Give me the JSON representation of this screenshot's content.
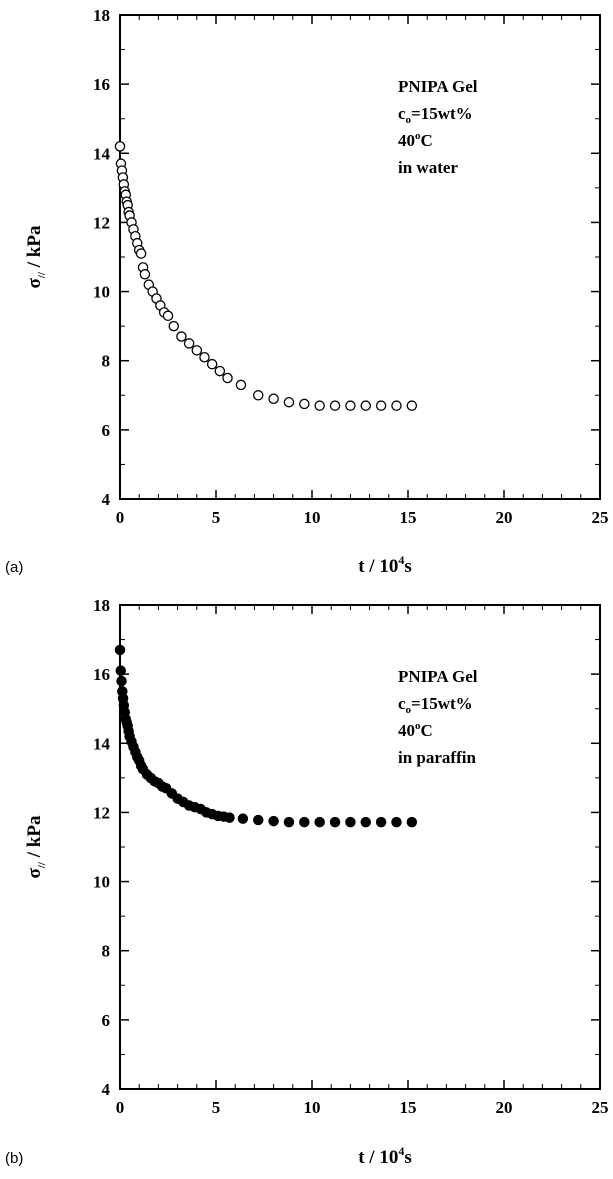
{
  "chart_data": [
    {
      "type": "scatter",
      "panel_label": "(a)",
      "marker": "open-circle",
      "xlabel": {
        "main": "t / 10",
        "sup": "4",
        "tail": "s"
      },
      "ylabel": {
        "main": "σ",
        "sub": "//",
        "tail": " / kPa"
      },
      "xlim": [
        0,
        25
      ],
      "ylim": [
        4,
        18
      ],
      "xticks": [
        0,
        5,
        10,
        15,
        20,
        25
      ],
      "yticks": [
        4,
        6,
        8,
        10,
        12,
        14,
        16,
        18
      ],
      "annotation": {
        "line1": "PNIPA Gel",
        "line2_base": "c",
        "line2_sub": "o",
        "line2_tail": "=15wt%",
        "line3_base": "40",
        "line3_sup": "o",
        "line3_tail": "C",
        "line4": "in water"
      },
      "x": [
        0.0,
        0.05,
        0.1,
        0.15,
        0.2,
        0.25,
        0.3,
        0.35,
        0.4,
        0.45,
        0.5,
        0.6,
        0.7,
        0.8,
        0.9,
        1.0,
        1.1,
        1.2,
        1.3,
        1.5,
        1.7,
        1.9,
        2.1,
        2.3,
        2.5,
        2.8,
        3.2,
        3.6,
        4.0,
        4.4,
        4.8,
        5.2,
        5.6,
        6.3,
        7.2,
        8.0,
        8.8,
        9.6,
        10.4,
        11.2,
        12.0,
        12.8,
        13.6,
        14.4,
        15.2
      ],
      "y": [
        14.2,
        13.7,
        13.5,
        13.3,
        13.1,
        12.9,
        12.8,
        12.6,
        12.5,
        12.3,
        12.2,
        12.0,
        11.8,
        11.6,
        11.4,
        11.2,
        11.1,
        10.7,
        10.5,
        10.2,
        10.0,
        9.8,
        9.6,
        9.4,
        9.3,
        9.0,
        8.7,
        8.5,
        8.3,
        8.1,
        7.9,
        7.7,
        7.5,
        7.3,
        7.0,
        6.9,
        6.8,
        6.75,
        6.7,
        6.7,
        6.7,
        6.7,
        6.7,
        6.7,
        6.7
      ]
    },
    {
      "type": "scatter",
      "panel_label": "(b)",
      "marker": "filled-circle",
      "xlabel": {
        "main": "t / 10",
        "sup": "4",
        "tail": "s"
      },
      "ylabel": {
        "main": "σ",
        "sub": "//",
        "tail": " / kPa"
      },
      "xlim": [
        0,
        25
      ],
      "ylim": [
        4,
        18
      ],
      "xticks": [
        0,
        5,
        10,
        15,
        20,
        25
      ],
      "yticks": [
        4,
        6,
        8,
        10,
        12,
        14,
        16,
        18
      ],
      "annotation": {
        "line1": "PNIPA Gel",
        "line2_base": "c",
        "line2_sub": "o",
        "line2_tail": "=15wt%",
        "line3_base": "40",
        "line3_sup": "o",
        "line3_tail": "C",
        "line4": "in paraffin"
      },
      "x": [
        0.0,
        0.04,
        0.08,
        0.12,
        0.16,
        0.2,
        0.25,
        0.3,
        0.35,
        0.4,
        0.45,
        0.5,
        0.6,
        0.7,
        0.8,
        0.9,
        1.0,
        1.1,
        1.2,
        1.4,
        1.6,
        1.8,
        2.0,
        2.2,
        2.4,
        2.7,
        3.0,
        3.3,
        3.6,
        3.9,
        4.2,
        4.5,
        4.8,
        5.1,
        5.4,
        5.7,
        6.4,
        7.2,
        8.0,
        8.8,
        9.6,
        10.4,
        11.2,
        12.0,
        12.8,
        13.6,
        14.4,
        15.2
      ],
      "y": [
        16.7,
        16.1,
        15.8,
        15.5,
        15.3,
        15.1,
        14.9,
        14.7,
        14.6,
        14.5,
        14.35,
        14.2,
        14.05,
        13.9,
        13.75,
        13.6,
        13.5,
        13.35,
        13.25,
        13.1,
        13.0,
        12.9,
        12.85,
        12.75,
        12.7,
        12.55,
        12.4,
        12.3,
        12.2,
        12.15,
        12.1,
        12.0,
        11.95,
        11.9,
        11.88,
        11.85,
        11.82,
        11.78,
        11.75,
        11.72,
        11.72,
        11.72,
        11.72,
        11.72,
        11.72,
        11.72,
        11.72,
        11.72
      ]
    }
  ]
}
